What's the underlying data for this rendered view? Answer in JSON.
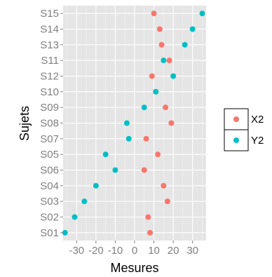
{
  "colors": {
    "panel_background": "#e5e5e5",
    "grid_major": "#ffffff",
    "grid_minor": "#f2f2f2",
    "tick_label": "#7f7f7f",
    "X2": "#f8766d",
    "Y2": "#00bfc4"
  },
  "chart_data": {
    "type": "scatter",
    "title": "",
    "xlabel": "Mesures",
    "ylabel": "Sujets",
    "xlim": [
      -37,
      37
    ],
    "x_ticks": [
      -30,
      -20,
      -10,
      0,
      10,
      20,
      30
    ],
    "x_tick_labels": [
      "-30",
      "-20",
      "-10",
      "0",
      "10",
      "20",
      "30"
    ],
    "grid": true,
    "legend_position": "right",
    "categories": [
      "S15",
      "S14",
      "S13",
      "S11",
      "S12",
      "S10",
      "S09",
      "S08",
      "S07",
      "S05",
      "S06",
      "S04",
      "S03",
      "S02",
      "S01"
    ],
    "series": [
      {
        "name": "X2",
        "color": "#f8766d",
        "values": [
          10,
          13,
          14,
          18,
          9,
          11,
          16,
          19,
          6,
          12,
          5,
          15,
          17,
          7,
          8
        ]
      },
      {
        "name": "Y2",
        "color": "#00bfc4",
        "values": [
          35,
          30,
          26,
          15,
          20,
          11,
          5,
          -4,
          -3,
          -15,
          -10,
          -20,
          -26,
          -31,
          -36
        ]
      }
    ]
  }
}
